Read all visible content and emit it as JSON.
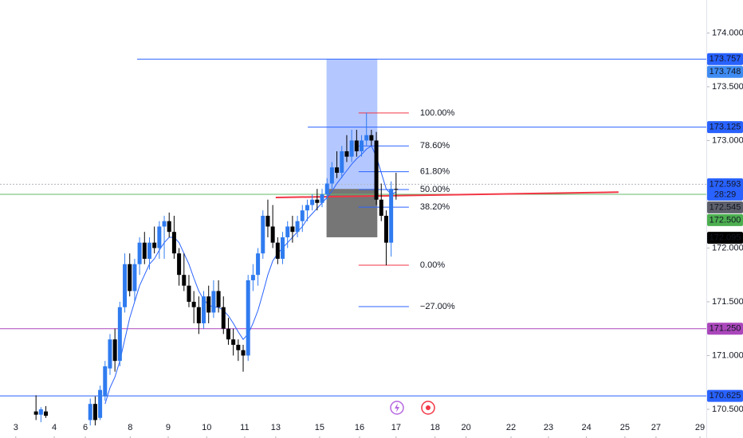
{
  "chart_data": {
    "type": "candlestick",
    "x": [
      0,
      1,
      2,
      11,
      12,
      13,
      14,
      15,
      16,
      17,
      18,
      19,
      20,
      21,
      22,
      23,
      24,
      25,
      26,
      27,
      28,
      29,
      30,
      31,
      32,
      33,
      34,
      35,
      36,
      37,
      38,
      39,
      40,
      41,
      42,
      43,
      44,
      45,
      46,
      47,
      48,
      49,
      50,
      51,
      52,
      53,
      54,
      55,
      56,
      57,
      58,
      59,
      60,
      61,
      62,
      63,
      64,
      65,
      66,
      67,
      68,
      69,
      70,
      71,
      72,
      73
    ],
    "open": [
      170.48,
      170.45,
      170.48,
      170.4,
      170.55,
      170.42,
      170.62,
      170.88,
      171.15,
      170.95,
      171.45,
      171.85,
      171.6,
      171.85,
      172.05,
      171.9,
      172.05,
      172.0,
      172.2,
      172.25,
      172.15,
      171.95,
      171.75,
      171.65,
      171.5,
      171.45,
      171.3,
      171.55,
      171.4,
      171.6,
      171.45,
      171.25,
      171.15,
      171.1,
      171.05,
      171.0,
      171.7,
      171.75,
      171.95,
      172.3,
      172.2,
      172.05,
      171.9,
      172.1,
      172.2,
      172.15,
      172.25,
      172.35,
      172.4,
      172.45,
      172.42,
      172.5,
      172.6,
      172.75,
      172.7,
      172.9,
      172.85,
      173.0,
      172.9,
      173.0,
      173.05,
      173.0,
      172.45,
      172.3,
      172.05,
      172.55
    ],
    "high": [
      170.63,
      170.52,
      170.53,
      170.6,
      170.62,
      170.72,
      170.95,
      171.2,
      171.25,
      171.5,
      171.95,
      171.95,
      171.9,
      172.1,
      172.15,
      172.1,
      172.2,
      172.25,
      172.3,
      172.33,
      172.3,
      172.0,
      171.95,
      171.75,
      171.6,
      171.55,
      171.6,
      171.65,
      171.7,
      171.7,
      171.55,
      171.35,
      171.25,
      171.15,
      171.1,
      171.75,
      171.85,
      172.0,
      172.35,
      172.45,
      172.4,
      172.1,
      172.15,
      172.25,
      172.3,
      172.3,
      172.4,
      172.45,
      172.5,
      172.55,
      172.55,
      172.65,
      172.8,
      172.9,
      172.95,
      173.05,
      173.1,
      173.1,
      173.05,
      173.26,
      173.1,
      173.08,
      172.6,
      172.35,
      172.62,
      172.7
    ],
    "low": [
      170.4,
      170.38,
      170.42,
      170.35,
      170.35,
      170.4,
      170.58,
      170.82,
      170.85,
      170.9,
      171.4,
      171.55,
      171.5,
      171.75,
      171.85,
      171.8,
      171.95,
      171.9,
      171.9,
      172.1,
      171.9,
      171.65,
      171.6,
      171.45,
      171.3,
      171.2,
      171.25,
      171.3,
      171.35,
      171.4,
      171.2,
      171.1,
      171.0,
      170.95,
      170.85,
      170.95,
      171.6,
      171.65,
      171.9,
      172.1,
      172.0,
      171.85,
      171.85,
      172.0,
      172.05,
      172.1,
      172.15,
      172.25,
      172.35,
      172.35,
      172.38,
      172.45,
      172.55,
      172.65,
      172.65,
      172.8,
      172.8,
      172.85,
      172.85,
      172.95,
      172.95,
      172.4,
      172.25,
      171.84,
      171.92,
      172.45
    ],
    "close": [
      170.45,
      170.5,
      170.44,
      170.55,
      170.4,
      170.68,
      170.9,
      171.15,
      170.95,
      171.45,
      171.85,
      171.6,
      171.85,
      172.05,
      171.9,
      172.05,
      172.0,
      172.2,
      172.25,
      172.15,
      171.95,
      171.75,
      171.65,
      171.5,
      171.45,
      171.3,
      171.55,
      171.4,
      171.6,
      171.45,
      171.25,
      171.15,
      171.1,
      171.05,
      171.0,
      171.7,
      171.75,
      171.95,
      172.3,
      172.2,
      172.05,
      171.9,
      172.1,
      172.2,
      172.15,
      172.25,
      172.35,
      172.4,
      172.45,
      172.42,
      172.5,
      172.6,
      172.75,
      172.7,
      172.9,
      172.85,
      173.0,
      172.9,
      173.0,
      173.05,
      173.0,
      172.45,
      172.3,
      172.05,
      172.55,
      172.545
    ],
    "up_color": "#2f7bf0",
    "down_color": "#000000",
    "ma": {
      "color": "#2962ff",
      "values": [
        null,
        null,
        null,
        null,
        null,
        null,
        170.55,
        170.7,
        170.8,
        170.95,
        171.15,
        171.35,
        171.5,
        171.65,
        171.75,
        171.85,
        171.9,
        171.98,
        172.05,
        172.1,
        172.1,
        172.05,
        171.95,
        171.85,
        171.72,
        171.6,
        171.52,
        171.47,
        171.45,
        171.45,
        171.42,
        171.37,
        171.3,
        171.22,
        171.15,
        171.2,
        171.3,
        171.42,
        171.58,
        171.75,
        171.88,
        171.95,
        172.0,
        172.05,
        172.1,
        172.15,
        172.2,
        172.27,
        172.32,
        172.37,
        172.42,
        172.47,
        172.53,
        172.6,
        172.66,
        172.72,
        172.78,
        172.83,
        172.87,
        172.92,
        172.95,
        172.85,
        172.7,
        172.55,
        172.5,
        172.52
      ]
    },
    "xlim": [
      -7.3,
      135.9
    ],
    "ylim": [
      170.233,
      174.307
    ],
    "xticks": [
      {
        "value": -4.1,
        "label": "3"
      },
      {
        "value": 3.7,
        "label": "4"
      },
      {
        "value": 10,
        "label": "6"
      },
      {
        "value": 19.1,
        "label": "8"
      },
      {
        "value": 26.8,
        "label": "9"
      },
      {
        "value": 34.6,
        "label": "10"
      },
      {
        "value": 42.3,
        "label": "11"
      },
      {
        "value": 48.6,
        "label": "13"
      },
      {
        "value": 57.5,
        "label": "15"
      },
      {
        "value": 65.6,
        "label": "16"
      },
      {
        "value": 73,
        "label": "17"
      },
      {
        "value": 80.9,
        "label": "18"
      },
      {
        "value": 87.2,
        "label": "20"
      },
      {
        "value": 96.3,
        "label": "22"
      },
      {
        "value": 103.9,
        "label": "23"
      },
      {
        "value": 111.6,
        "label": "24"
      },
      {
        "value": 119.4,
        "label": "25"
      },
      {
        "value": 125.7,
        "label": "27"
      },
      {
        "value": 134.6,
        "label": "29"
      }
    ],
    "yticks": [
      {
        "value": 170.5,
        "label": "170.500"
      },
      {
        "value": 171,
        "label": "171.000"
      },
      {
        "value": 171.5,
        "label": "171.500"
      },
      {
        "value": 172,
        "label": "172.000"
      },
      {
        "value": 173,
        "label": "173.000"
      },
      {
        "value": 173.5,
        "label": "173.500"
      },
      {
        "value": 174,
        "label": "174.000"
      }
    ],
    "hlines": [
      {
        "value": 173.757,
        "x0": 20.5,
        "color": "#2962ff"
      },
      {
        "value": 173.125,
        "x0": 55.1,
        "color": "#2962ff"
      },
      {
        "value": 172.5,
        "color": "#66bb6a"
      },
      {
        "value": 172.593,
        "color": "#b2b5be",
        "dashed": true
      },
      {
        "value": 171.25,
        "color": "#ab47bc"
      },
      {
        "value": 170.625,
        "color": "#2962ff"
      }
    ],
    "trendline": {
      "x": [
        48.6,
        118.1
      ],
      "values": [
        172.47,
        172.52
      ],
      "color": "#f23645"
    },
    "position": {
      "x": [
        58.9,
        69.2
      ],
      "target": 173.757,
      "entry": 172.55,
      "stop": 172.1
    },
    "fib": {
      "x": [
        65.4,
        75.6
      ],
      "levels": [
        {
          "value": 173.256,
          "label": "100.00%",
          "color": "#f23645"
        },
        {
          "value": 172.95,
          "label": "78.60%",
          "color": "#2962ff"
        },
        {
          "value": 172.71,
          "label": "61.80%",
          "color": "#2962ff"
        },
        {
          "value": 172.544,
          "label": "50.00%",
          "color": "#2962ff"
        },
        {
          "value": 172.38,
          "label": "38.20%",
          "color": "#2962ff"
        },
        {
          "value": 171.84,
          "label": "0.00%",
          "color": "#f23645"
        },
        {
          "value": 171.455,
          "label": "−27.00%",
          "color": "#2962ff"
        }
      ]
    },
    "price_tags": [
      {
        "value": 173.757,
        "label": "173.757",
        "color": "#2962ff"
      },
      {
        "value": 173.748,
        "label": "173.748",
        "color": "#3f8cf3"
      },
      {
        "value": 173.125,
        "label": "173.125",
        "color": "#2962ff"
      },
      {
        "value": 172.593,
        "label": "172.593",
        "color": "#2962ff"
      },
      {
        "value": 172.545,
        "label": "172.545",
        "color": "#5d606b"
      },
      {
        "value": 172.5,
        "label": "172.500",
        "color": "#4caf50"
      },
      {
        "value": 172.095,
        "label": "172.095",
        "color": "#000000"
      },
      {
        "value": 171.25,
        "label": "171.250",
        "color": "#ab47bc"
      },
      {
        "value": 170.625,
        "label": "170.625",
        "color": "#2962ff"
      }
    ],
    "countdown": "28:29"
  }
}
